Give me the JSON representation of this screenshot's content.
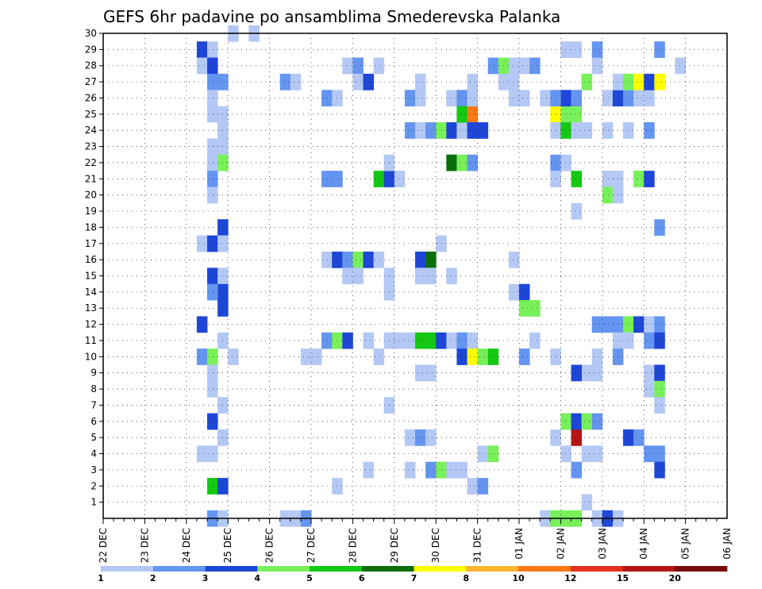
{
  "chart_data": {
    "type": "heatmap",
    "title": "GEFS 6hr padavine po ansamblima Smederevska Palanka",
    "xlabel": "",
    "ylabel": "",
    "x_categories": [
      "22 DEC",
      "23 DEC",
      "24 DEC",
      "25 DEC",
      "26 DEC",
      "27 DEC",
      "28 DEC",
      "29 DEC",
      "30 DEC",
      "31 DEC",
      "01 JAN",
      "02 JAN",
      "03 JAN",
      "04 JAN",
      "05 JAN",
      "06 JAN"
    ],
    "x_range": [
      0,
      60
    ],
    "y_range": [
      0,
      30
    ],
    "y_ticks": [
      1,
      2,
      3,
      4,
      5,
      6,
      7,
      8,
      9,
      10,
      11,
      12,
      13,
      14,
      15,
      16,
      17,
      18,
      19,
      20,
      21,
      22,
      23,
      24,
      25,
      26,
      27,
      28,
      29,
      30
    ],
    "grid": true,
    "legend": {
      "placement": "bottom",
      "labels": [
        "1",
        "2",
        "3",
        "4",
        "5",
        "6",
        "7",
        "8",
        "10",
        "12",
        "15",
        "20"
      ],
      "colors": [
        "#b4c8f5",
        "#6495f0",
        "#1e46d7",
        "#78f05a",
        "#14c814",
        "#0a6e0a",
        "#ffff00",
        "#ffb432",
        "#ff7814",
        "#e6321e",
        "#b41414",
        "#780a0a"
      ]
    },
    "note": "cells: [x_index (6h step from 22 DEC 00Z), member, color_class 1..12]",
    "cells": [
      [
        9,
        29,
        3
      ],
      [
        10,
        29,
        1
      ],
      [
        9,
        28,
        1
      ],
      [
        10,
        28,
        3
      ],
      [
        10,
        27,
        2
      ],
      [
        11,
        27,
        2
      ],
      [
        10,
        26,
        1
      ],
      [
        10,
        25,
        1
      ],
      [
        11,
        25,
        1
      ],
      [
        11,
        24,
        1
      ],
      [
        10,
        23,
        1
      ],
      [
        11,
        23,
        1
      ],
      [
        10,
        22,
        1
      ],
      [
        11,
        22,
        4
      ],
      [
        10,
        21,
        2
      ],
      [
        10,
        20,
        1
      ],
      [
        11,
        18,
        3
      ],
      [
        9,
        17,
        1
      ],
      [
        10,
        17,
        3
      ],
      [
        11,
        17,
        1
      ],
      [
        10,
        15,
        3
      ],
      [
        11,
        15,
        1
      ],
      [
        11,
        14,
        3
      ],
      [
        10,
        14,
        2
      ],
      [
        11,
        13,
        3
      ],
      [
        9,
        12,
        3
      ],
      [
        11,
        11,
        1
      ],
      [
        9,
        10,
        2
      ],
      [
        10,
        10,
        4
      ],
      [
        10,
        9,
        1
      ],
      [
        10,
        8,
        1
      ],
      [
        11,
        7,
        1
      ],
      [
        10,
        6,
        3
      ],
      [
        11,
        5,
        1
      ],
      [
        9,
        4,
        1
      ],
      [
        10,
        4,
        1
      ],
      [
        10,
        2,
        5
      ],
      [
        11,
        2,
        3
      ],
      [
        10,
        0,
        2
      ],
      [
        11,
        0,
        1
      ],
      [
        12,
        30,
        1
      ],
      [
        14,
        30,
        1
      ],
      [
        12,
        10,
        1
      ],
      [
        17,
        27,
        2
      ],
      [
        17,
        0,
        1
      ],
      [
        18,
        0,
        1
      ],
      [
        19,
        0,
        2
      ],
      [
        18,
        27,
        1
      ],
      [
        19,
        10,
        1
      ],
      [
        21,
        26,
        2
      ],
      [
        22,
        26,
        1
      ],
      [
        21,
        21,
        2
      ],
      [
        22,
        21,
        2
      ],
      [
        23,
        28,
        1
      ],
      [
        24,
        28,
        2
      ],
      [
        21,
        16,
        1
      ],
      [
        22,
        16,
        3
      ],
      [
        23,
        16,
        2
      ],
      [
        24,
        16,
        4
      ],
      [
        25,
        16,
        3
      ],
      [
        26,
        16,
        1
      ],
      [
        23,
        15,
        1
      ],
      [
        24,
        15,
        1
      ],
      [
        21,
        11,
        2
      ],
      [
        22,
        11,
        4
      ],
      [
        23,
        11,
        3
      ],
      [
        25,
        11,
        1
      ],
      [
        20,
        10,
        1
      ],
      [
        22,
        2,
        1
      ],
      [
        24,
        27,
        1
      ],
      [
        25,
        27,
        3
      ],
      [
        26,
        21,
        5
      ],
      [
        27,
        21,
        3
      ],
      [
        28,
        21,
        1
      ],
      [
        27,
        22,
        1
      ],
      [
        27,
        15,
        1
      ],
      [
        27,
        14,
        1
      ],
      [
        27,
        11,
        1
      ],
      [
        28,
        11,
        1
      ],
      [
        29,
        11,
        1
      ],
      [
        26,
        10,
        1
      ],
      [
        27,
        7,
        1
      ],
      [
        25,
        3,
        1
      ],
      [
        26,
        28,
        1
      ],
      [
        29,
        26,
        2
      ],
      [
        30,
        26,
        1
      ],
      [
        30,
        27,
        1
      ],
      [
        29,
        24,
        2
      ],
      [
        30,
        24,
        1
      ],
      [
        31,
        24,
        2
      ],
      [
        32,
        24,
        4
      ],
      [
        33,
        24,
        3
      ],
      [
        34,
        24,
        1
      ],
      [
        30,
        16,
        3
      ],
      [
        31,
        16,
        6
      ],
      [
        30,
        15,
        1
      ],
      [
        31,
        15,
        1
      ],
      [
        30,
        11,
        5
      ],
      [
        31,
        11,
        5
      ],
      [
        32,
        11,
        3
      ],
      [
        33,
        11,
        1
      ],
      [
        34,
        11,
        2
      ],
      [
        35,
        11,
        1
      ],
      [
        30,
        9,
        1
      ],
      [
        31,
        9,
        1
      ],
      [
        29,
        5,
        1
      ],
      [
        30,
        5,
        2
      ],
      [
        31,
        5,
        1
      ],
      [
        29,
        3,
        1
      ],
      [
        31,
        3,
        2
      ],
      [
        32,
        3,
        4
      ],
      [
        33,
        3,
        1
      ],
      [
        34,
        3,
        1
      ],
      [
        32,
        17,
        1
      ],
      [
        33,
        15,
        1
      ],
      [
        33,
        26,
        1
      ],
      [
        34,
        26,
        2
      ],
      [
        34,
        25,
        5
      ],
      [
        35,
        25,
        9
      ],
      [
        35,
        26,
        1
      ],
      [
        33,
        22,
        6
      ],
      [
        34,
        22,
        4
      ],
      [
        35,
        22,
        2
      ],
      [
        35,
        24,
        3
      ],
      [
        36,
        24,
        3
      ],
      [
        34,
        10,
        3
      ],
      [
        35,
        10,
        7
      ],
      [
        36,
        10,
        4
      ],
      [
        37,
        10,
        5
      ],
      [
        35,
        27,
        1
      ],
      [
        37,
        28,
        2
      ],
      [
        38,
        28,
        4
      ],
      [
        39,
        28,
        1
      ],
      [
        40,
        28,
        1
      ],
      [
        41,
        28,
        2
      ],
      [
        38,
        27,
        1
      ],
      [
        39,
        27,
        1
      ],
      [
        39,
        26,
        1
      ],
      [
        40,
        26,
        1
      ],
      [
        35,
        2,
        1
      ],
      [
        36,
        2,
        2
      ],
      [
        36,
        4,
        1
      ],
      [
        37,
        4,
        4
      ],
      [
        39,
        16,
        1
      ],
      [
        39,
        14,
        1
      ],
      [
        40,
        14,
        3
      ],
      [
        40,
        13,
        4
      ],
      [
        41,
        13,
        4
      ],
      [
        40,
        10,
        2
      ],
      [
        41,
        11,
        1
      ],
      [
        42,
        26,
        1
      ],
      [
        42,
        0,
        1
      ],
      [
        43,
        0,
        4
      ],
      [
        44,
        0,
        4
      ],
      [
        45,
        0,
        4
      ],
      [
        43,
        25,
        7
      ],
      [
        44,
        25,
        4
      ],
      [
        45,
        25,
        4
      ],
      [
        43,
        24,
        1
      ],
      [
        44,
        24,
        5
      ],
      [
        45,
        24,
        1
      ],
      [
        46,
        24,
        1
      ],
      [
        44,
        26,
        3
      ],
      [
        45,
        26,
        2
      ],
      [
        43,
        26,
        2
      ],
      [
        43,
        22,
        2
      ],
      [
        44,
        22,
        1
      ],
      [
        43,
        21,
        1
      ],
      [
        45,
        21,
        5
      ],
      [
        43,
        10,
        1
      ],
      [
        43,
        5,
        1
      ],
      [
        45,
        5,
        11
      ],
      [
        44,
        6,
        4
      ],
      [
        45,
        6,
        3
      ],
      [
        46,
        6,
        4
      ],
      [
        47,
        6,
        2
      ],
      [
        44,
        4,
        1
      ],
      [
        46,
        4,
        1
      ],
      [
        47,
        4,
        1
      ],
      [
        45,
        3,
        2
      ],
      [
        46,
        1,
        1
      ],
      [
        47,
        29,
        2
      ],
      [
        46,
        27,
        4
      ],
      [
        47,
        28,
        1
      ],
      [
        45,
        19,
        1
      ],
      [
        44,
        29,
        1
      ],
      [
        45,
        29,
        1
      ],
      [
        46,
        9,
        1
      ],
      [
        47,
        9,
        1
      ],
      [
        45,
        9,
        3
      ],
      [
        47,
        10,
        1
      ],
      [
        47,
        12,
        2
      ],
      [
        48,
        12,
        2
      ],
      [
        49,
        12,
        2
      ],
      [
        47,
        0,
        1
      ],
      [
        48,
        0,
        3
      ],
      [
        49,
        0,
        1
      ],
      [
        48,
        26,
        1
      ],
      [
        49,
        26,
        3
      ],
      [
        50,
        26,
        2
      ],
      [
        51,
        26,
        1
      ],
      [
        52,
        26,
        1
      ],
      [
        49,
        27,
        1
      ],
      [
        50,
        27,
        4
      ],
      [
        51,
        27,
        7
      ],
      [
        52,
        27,
        3
      ],
      [
        53,
        27,
        7
      ],
      [
        48,
        24,
        1
      ],
      [
        50,
        24,
        1
      ],
      [
        52,
        24,
        2
      ],
      [
        48,
        21,
        1
      ],
      [
        49,
        21,
        1
      ],
      [
        51,
        21,
        4
      ],
      [
        52,
        21,
        3
      ],
      [
        48,
        20,
        4
      ],
      [
        49,
        20,
        1
      ],
      [
        50,
        12,
        4
      ],
      [
        51,
        12,
        3
      ],
      [
        52,
        12,
        1
      ],
      [
        53,
        12,
        2
      ],
      [
        49,
        11,
        1
      ],
      [
        50,
        11,
        1
      ],
      [
        52,
        11,
        2
      ],
      [
        53,
        11,
        3
      ],
      [
        49,
        10,
        2
      ],
      [
        52,
        9,
        1
      ],
      [
        53,
        9,
        3
      ],
      [
        52,
        8,
        1
      ],
      [
        53,
        8,
        4
      ],
      [
        53,
        7,
        1
      ],
      [
        50,
        5,
        3
      ],
      [
        51,
        5,
        2
      ],
      [
        52,
        4,
        2
      ],
      [
        53,
        4,
        2
      ],
      [
        53,
        3,
        3
      ],
      [
        53,
        29,
        2
      ],
      [
        53,
        18,
        2
      ],
      [
        55,
        28,
        1
      ]
    ]
  }
}
